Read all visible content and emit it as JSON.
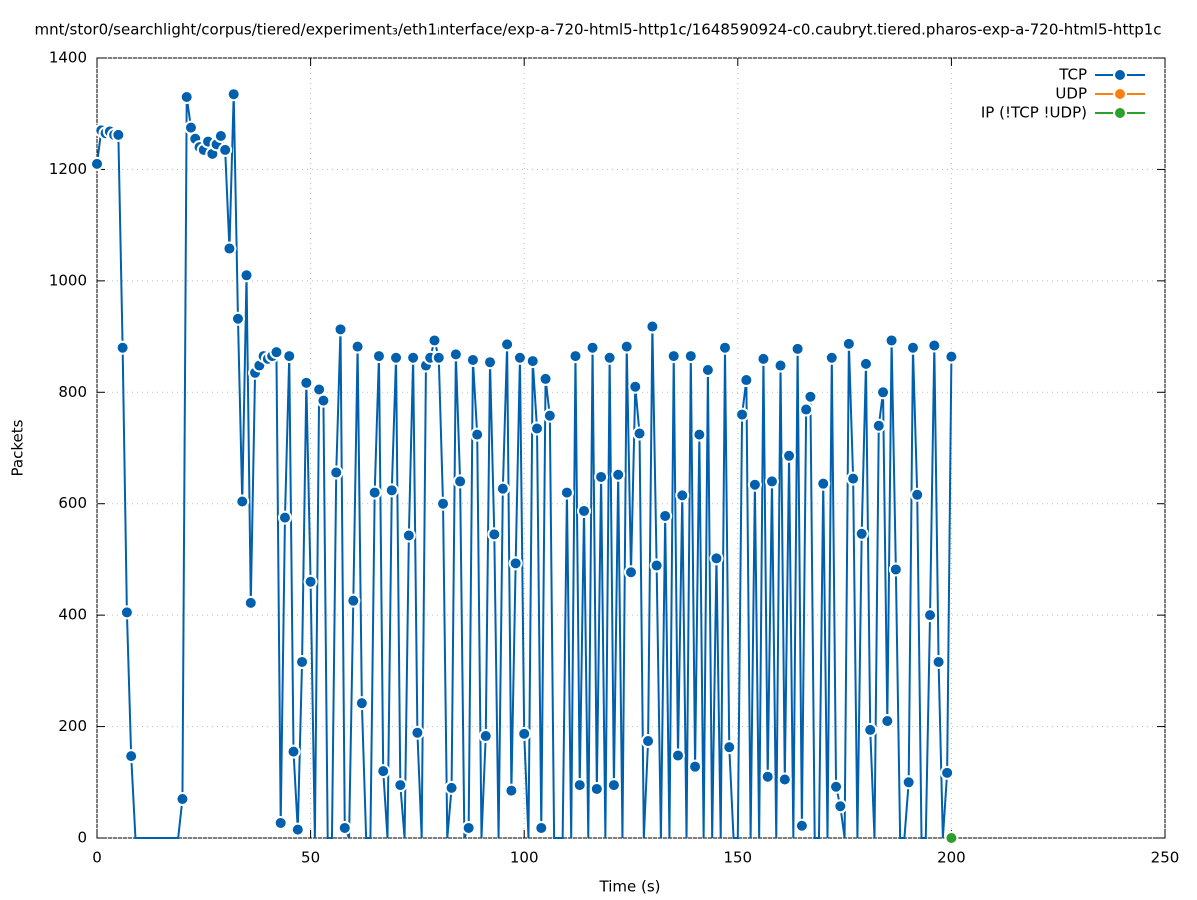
{
  "chart_data": {
    "type": "line",
    "title": "mnt/stor0/searchlight/corpus/tiered/experiment₃/eth1ᵢnterface/exp-a-720-html5-http1c/1648590924-c0.caubryt.tiered.pharos-exp-a-720-html5-http1c",
    "xlabel": "Time (s)",
    "ylabel": "Packets",
    "xlim": [
      0,
      250
    ],
    "xticks": [
      0,
      50,
      100,
      150,
      200,
      250
    ],
    "ylim": [
      0,
      1400
    ],
    "yticks": [
      0,
      200,
      400,
      600,
      800,
      1000,
      1200,
      1400
    ],
    "grid": true,
    "legend": "top-right",
    "series": [
      {
        "name": "TCP",
        "color": "#0060ad",
        "x": [
          0,
          1,
          2,
          3,
          4,
          5,
          6,
          7,
          8,
          9,
          10,
          11,
          12,
          13,
          14,
          15,
          16,
          17,
          18,
          19,
          20,
          21,
          22,
          23,
          24,
          25,
          26,
          27,
          28,
          29,
          30,
          31,
          32,
          33,
          34,
          35,
          36,
          37,
          38,
          39,
          40,
          41,
          42,
          43,
          44,
          45,
          46,
          47,
          48,
          49,
          50,
          51,
          52,
          53,
          54,
          55,
          56,
          57,
          58,
          59,
          60,
          61,
          62,
          63,
          64,
          65,
          66,
          67,
          68,
          69,
          70,
          71,
          72,
          73,
          74,
          75,
          76,
          77,
          78,
          79,
          80,
          81,
          82,
          83,
          84,
          85,
          86,
          87,
          88,
          89,
          90,
          91,
          92,
          93,
          94,
          95,
          96,
          97,
          98,
          99,
          100,
          101,
          102,
          103,
          104,
          105,
          106,
          107,
          108,
          109,
          110,
          111,
          112,
          113,
          114,
          115,
          116,
          117,
          118,
          119,
          120,
          121,
          122,
          123,
          124,
          125,
          126,
          127,
          128,
          129,
          130,
          131,
          132,
          133,
          134,
          135,
          136,
          137,
          138,
          139,
          140,
          141,
          142,
          143,
          144,
          145,
          146,
          147,
          148,
          149,
          150,
          151,
          152,
          153,
          154,
          155,
          156,
          157,
          158,
          159,
          160,
          161,
          162,
          163,
          164,
          165,
          166,
          167,
          168,
          169,
          170,
          171,
          172,
          173,
          174,
          175,
          176,
          177,
          178,
          179,
          180,
          181,
          182,
          183,
          184,
          185,
          186,
          187,
          188,
          189,
          190,
          191,
          192,
          193,
          194,
          195,
          196,
          197,
          198,
          199,
          200
        ],
        "values": [
          1210,
          1270,
          1265,
          1268,
          1262,
          1262,
          880,
          405,
          147,
          0,
          0,
          0,
          0,
          0,
          0,
          0,
          0,
          0,
          0,
          0,
          70,
          1330,
          1275,
          1255,
          1240,
          1235,
          1250,
          1228,
          1245,
          1260,
          1235,
          1058,
          1335,
          932,
          604,
          1010,
          422,
          835,
          848,
          865,
          860,
          865,
          872,
          27,
          575,
          865,
          155,
          15,
          316,
          817,
          460,
          0,
          805,
          785,
          0,
          0,
          656,
          913,
          18,
          0,
          426,
          882,
          242,
          0,
          0,
          620,
          865,
          120,
          0,
          624,
          862,
          95,
          0,
          543,
          862,
          189,
          0,
          848,
          862,
          893,
          862,
          600,
          0,
          90,
          868,
          640,
          0,
          18,
          858,
          724,
          0,
          183,
          854,
          545,
          0,
          627,
          886,
          85,
          493,
          862,
          187,
          0,
          856,
          735,
          18,
          824,
          758,
          0,
          0,
          0,
          620,
          0,
          865,
          95,
          587,
          0,
          880,
          88,
          648,
          0,
          862,
          95,
          652,
          0,
          882,
          477,
          810,
          726,
          0,
          174,
          918,
          489,
          0,
          578,
          0,
          865,
          148,
          615,
          0,
          865,
          128,
          724,
          0,
          840,
          0,
          502,
          0,
          880,
          163,
          0,
          0,
          760,
          822,
          0,
          634,
          0,
          860,
          110,
          640,
          0,
          848,
          105,
          686,
          0,
          878,
          22,
          769,
          792,
          0,
          0,
          636,
          0,
          862,
          92,
          57,
          0,
          887,
          645,
          0,
          546,
          851,
          194,
          0,
          740,
          800,
          210,
          893,
          482,
          0,
          0,
          100,
          880,
          616,
          0,
          0,
          400,
          884,
          316,
          0,
          117,
          864
        ]
      },
      {
        "name": "UDP",
        "color": "#ff7f0e",
        "x": [],
        "values": []
      },
      {
        "name": "IP (!TCP  !UDP)",
        "color": "#2ca02c",
        "x": [
          200
        ],
        "values": [
          0
        ]
      }
    ]
  }
}
